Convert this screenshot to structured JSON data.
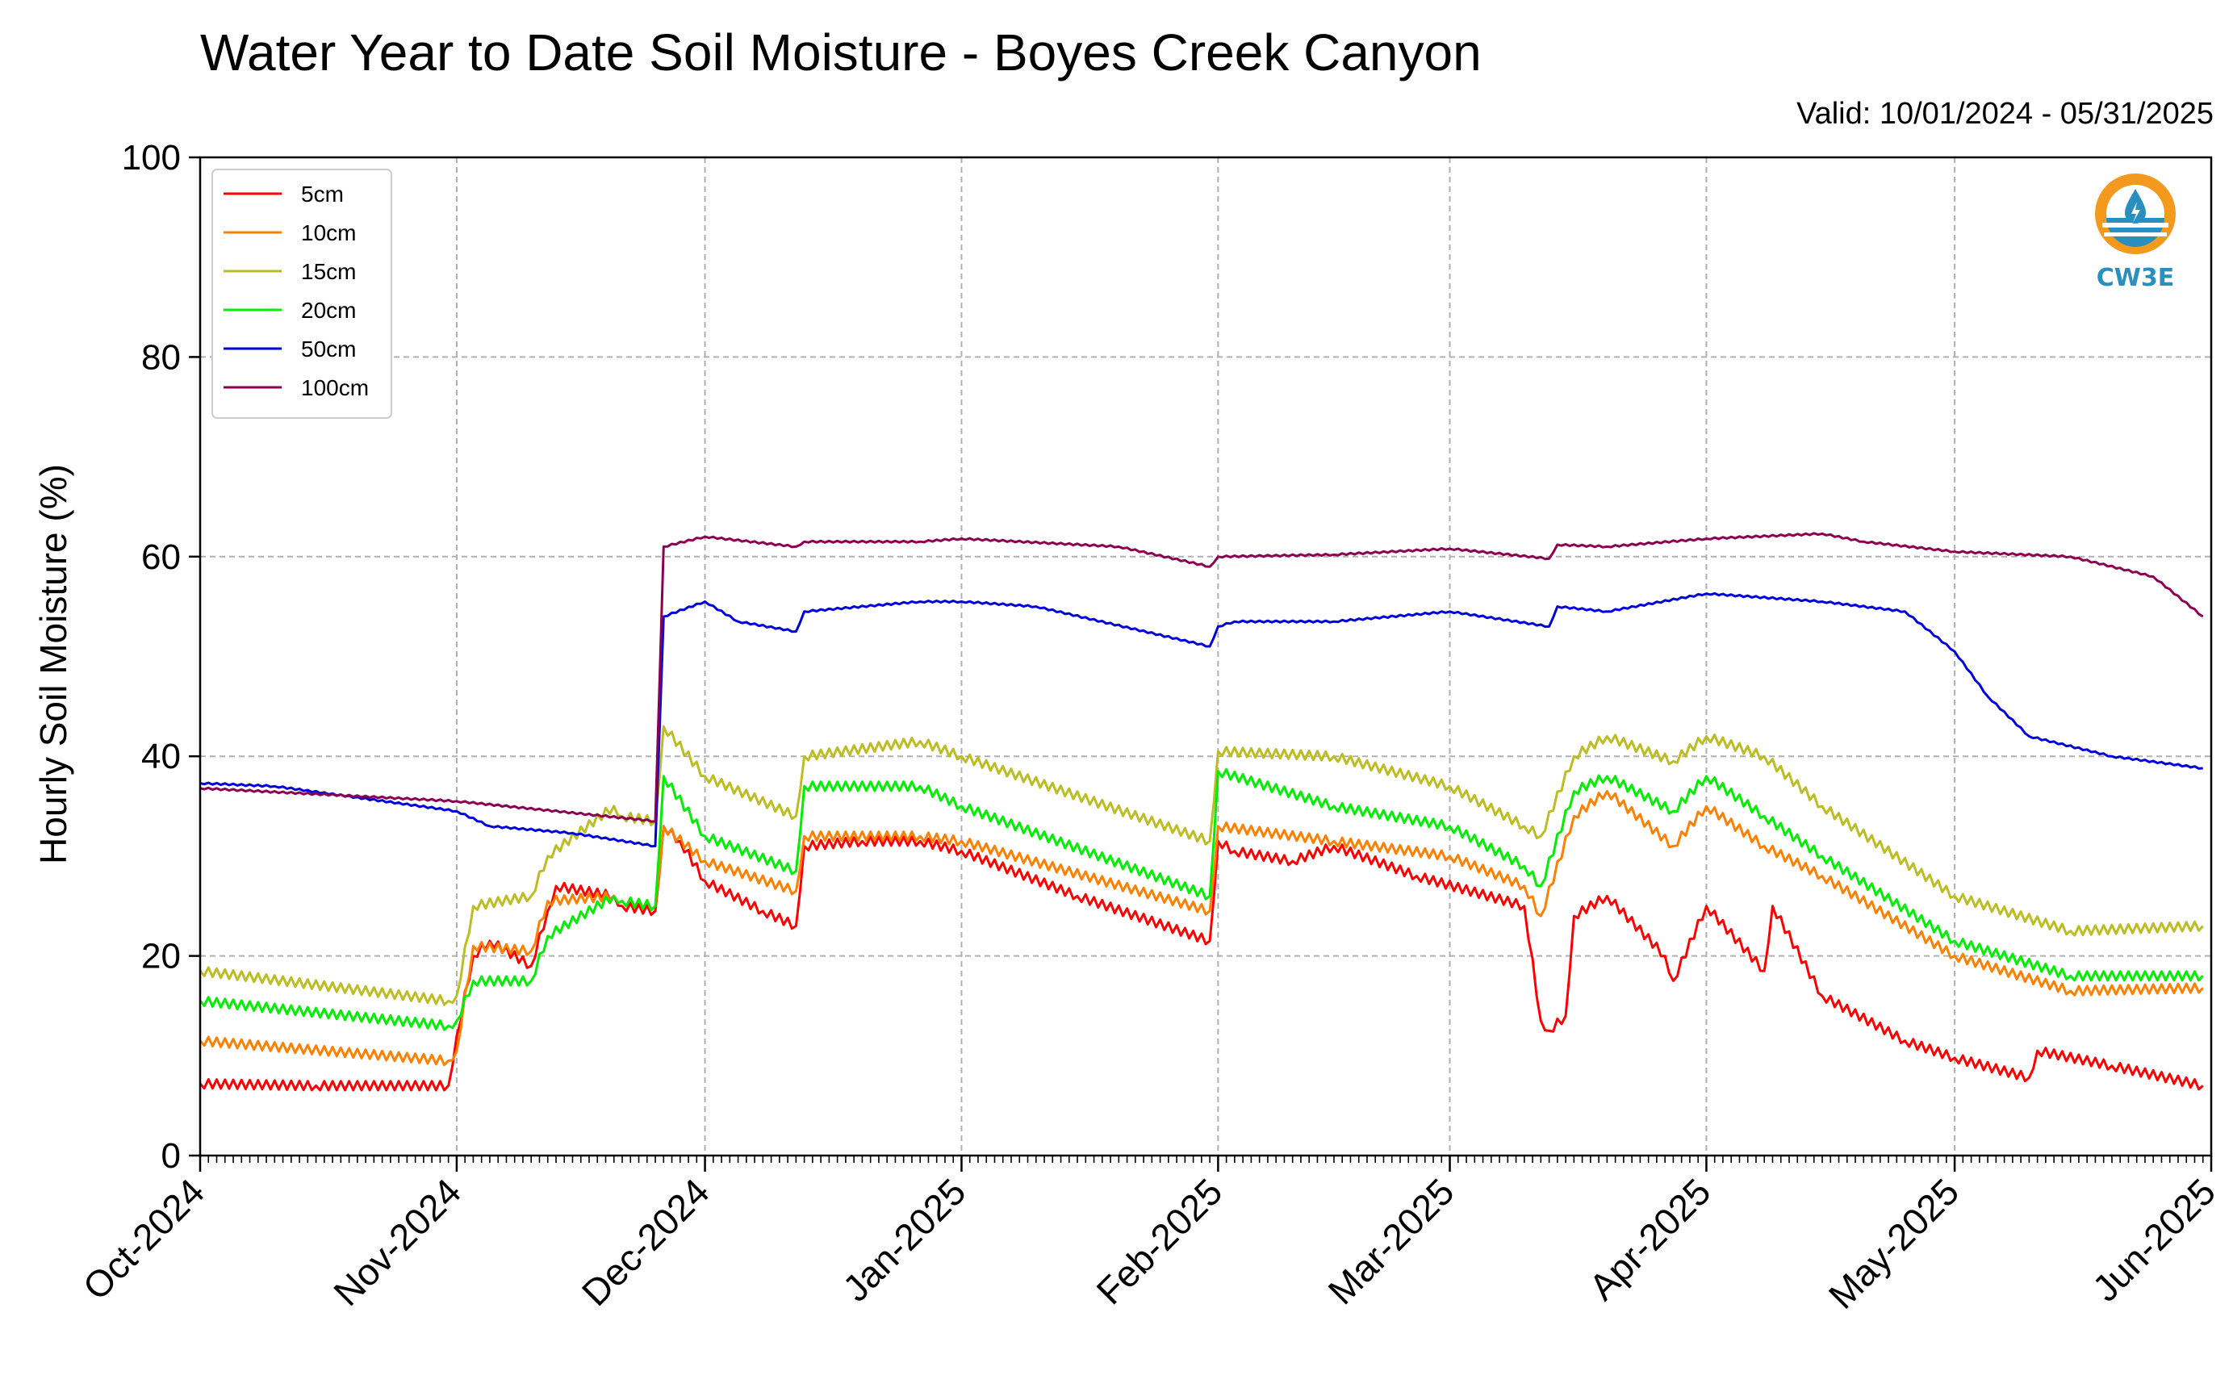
{
  "chart_data": {
    "type": "line",
    "title": "Water Year to Date Soil Moisture - Boyes Creek Canyon",
    "subtitle": "Valid: 10/01/2024 - 05/31/2025",
    "xlabel": "",
    "ylabel": "Hourly Soil Moisture (%)",
    "ylim": [
      0,
      100
    ],
    "xlim": [
      "2024-10-01",
      "2025-06-01"
    ],
    "yticks": [
      0,
      20,
      40,
      60,
      80,
      100
    ],
    "xticks": [
      {
        "date": "2024-10-01",
        "label": "Oct-2024"
      },
      {
        "date": "2024-11-01",
        "label": "Nov-2024"
      },
      {
        "date": "2024-12-01",
        "label": "Dec-2024"
      },
      {
        "date": "2025-01-01",
        "label": "Jan-2025"
      },
      {
        "date": "2025-02-01",
        "label": "Feb-2025"
      },
      {
        "date": "2025-03-01",
        "label": "Mar-2025"
      },
      {
        "date": "2025-04-01",
        "label": "Apr-2025"
      },
      {
        "date": "2025-05-01",
        "label": "May-2025"
      },
      {
        "date": "2025-06-01",
        "label": "Jun-2025"
      }
    ],
    "grid": true,
    "legend_position": "top-left",
    "series": [
      {
        "name": "5cm",
        "color": "#ff0000",
        "x": [
          "2024-10-01",
          "2024-10-15",
          "2024-10-31",
          "2024-11-01",
          "2024-11-03",
          "2024-11-05",
          "2024-11-10",
          "2024-11-12",
          "2024-11-13",
          "2024-11-20",
          "2024-11-21",
          "2024-11-25",
          "2024-11-26",
          "2024-11-28",
          "2024-12-01",
          "2024-12-08",
          "2024-12-12",
          "2024-12-13",
          "2024-12-20",
          "2024-12-27",
          "2025-01-01",
          "2025-01-15",
          "2025-01-31",
          "2025-02-01",
          "2025-02-03",
          "2025-02-10",
          "2025-02-15",
          "2025-02-25",
          "2025-03-10",
          "2025-03-12",
          "2025-03-13",
          "2025-03-15",
          "2025-03-16",
          "2025-03-20",
          "2025-03-27",
          "2025-03-28",
          "2025-04-01",
          "2025-04-08",
          "2025-04-09",
          "2025-04-15",
          "2025-04-25",
          "2025-05-01",
          "2025-05-10",
          "2025-05-11",
          "2025-05-20",
          "2025-05-31"
        ],
        "y": [
          7.2,
          7.0,
          7.0,
          12.0,
          20.0,
          21.5,
          19.0,
          24.5,
          27.0,
          26.0,
          25.0,
          24.5,
          33.0,
          31.5,
          27.5,
          24.5,
          23.0,
          31.0,
          31.5,
          31.5,
          30.5,
          26.0,
          21.5,
          31.5,
          30.5,
          29.5,
          31.0,
          28.0,
          25.0,
          13.5,
          12.5,
          14.0,
          24.0,
          26.0,
          20.0,
          17.5,
          25.0,
          18.5,
          25.0,
          16.0,
          11.5,
          9.8,
          7.8,
          10.5,
          9.0,
          7.0
        ]
      },
      {
        "name": "10cm",
        "color": "#ff8000",
        "x": [
          "2024-10-01",
          "2024-10-31",
          "2024-11-01",
          "2024-11-03",
          "2024-11-10",
          "2024-11-12",
          "2024-11-20",
          "2024-11-21",
          "2024-11-25",
          "2024-11-26",
          "2024-12-01",
          "2024-12-12",
          "2024-12-13",
          "2024-12-27",
          "2025-01-01",
          "2025-01-31",
          "2025-02-01",
          "2025-02-15",
          "2025-03-01",
          "2025-03-10",
          "2025-03-12",
          "2025-03-16",
          "2025-03-20",
          "2025-03-28",
          "2025-04-01",
          "2025-04-08",
          "2025-04-15",
          "2025-05-01",
          "2025-05-15",
          "2025-05-31"
        ],
        "y": [
          11.5,
          9.5,
          10.5,
          21.0,
          20.5,
          25.5,
          26.0,
          25.5,
          25.0,
          33.0,
          29.5,
          26.5,
          32.0,
          32.0,
          31.5,
          24.5,
          33.0,
          31.5,
          30.0,
          27.0,
          24.0,
          34.0,
          36.5,
          31.0,
          35.0,
          31.0,
          28.0,
          20.0,
          16.5,
          16.8
        ]
      },
      {
        "name": "15cm",
        "color": "#bcbd22",
        "x": [
          "2024-10-01",
          "2024-10-31",
          "2024-11-01",
          "2024-11-03",
          "2024-11-10",
          "2024-11-12",
          "2024-11-20",
          "2024-11-21",
          "2024-11-25",
          "2024-11-26",
          "2024-12-01",
          "2024-12-12",
          "2024-12-13",
          "2024-12-27",
          "2025-01-01",
          "2025-01-31",
          "2025-02-01",
          "2025-02-15",
          "2025-03-01",
          "2025-03-10",
          "2025-03-12",
          "2025-03-16",
          "2025-03-20",
          "2025-03-28",
          "2025-04-01",
          "2025-04-08",
          "2025-04-15",
          "2025-05-01",
          "2025-05-15",
          "2025-05-31"
        ],
        "y": [
          18.5,
          15.5,
          16.0,
          25.0,
          26.0,
          30.0,
          35.0,
          34.0,
          33.5,
          43.0,
          38.0,
          34.0,
          40.0,
          41.5,
          40.0,
          31.5,
          40.5,
          40.0,
          37.0,
          33.0,
          32.0,
          40.0,
          42.0,
          39.5,
          42.0,
          40.0,
          35.0,
          26.0,
          22.5,
          23.0
        ]
      },
      {
        "name": "20cm",
        "color": "#00ee00",
        "x": [
          "2024-10-01",
          "2024-10-31",
          "2024-11-01",
          "2024-11-03",
          "2024-11-10",
          "2024-11-12",
          "2024-11-20",
          "2024-11-21",
          "2024-11-25",
          "2024-11-26",
          "2024-12-01",
          "2024-12-12",
          "2024-12-13",
          "2024-12-27",
          "2025-01-01",
          "2025-01-31",
          "2025-02-01",
          "2025-02-15",
          "2025-03-01",
          "2025-03-10",
          "2025-03-12",
          "2025-03-16",
          "2025-03-20",
          "2025-03-28",
          "2025-04-01",
          "2025-04-08",
          "2025-04-15",
          "2025-05-01",
          "2025-05-15",
          "2025-05-31"
        ],
        "y": [
          15.5,
          13.0,
          13.5,
          17.5,
          17.5,
          22.0,
          26.0,
          25.5,
          25.0,
          38.0,
          32.0,
          28.5,
          37.0,
          37.0,
          35.0,
          26.0,
          38.5,
          35.0,
          33.0,
          29.0,
          27.0,
          36.5,
          38.0,
          34.5,
          38.0,
          34.0,
          30.0,
          21.5,
          18.0,
          18.0
        ]
      },
      {
        "name": "50cm",
        "color": "#0000dd",
        "x": [
          "2024-10-01",
          "2024-10-10",
          "2024-11-01",
          "2024-11-05",
          "2024-11-15",
          "2024-11-25",
          "2024-11-26",
          "2024-12-01",
          "2024-12-05",
          "2024-12-12",
          "2024-12-13",
          "2024-12-27",
          "2025-01-01",
          "2025-01-10",
          "2025-01-31",
          "2025-02-01",
          "2025-02-03",
          "2025-02-15",
          "2025-03-01",
          "2025-03-13",
          "2025-03-14",
          "2025-03-20",
          "2025-04-01",
          "2025-04-15",
          "2025-04-25",
          "2025-05-01",
          "2025-05-05",
          "2025-05-10",
          "2025-05-20",
          "2025-05-31"
        ],
        "y": [
          37.3,
          37.0,
          34.5,
          33.0,
          32.3,
          31.0,
          54.0,
          55.5,
          53.5,
          52.5,
          54.5,
          55.5,
          55.5,
          55.0,
          51.0,
          53.0,
          53.5,
          53.5,
          54.5,
          53.0,
          55.0,
          54.5,
          56.3,
          55.5,
          54.5,
          50.5,
          46.0,
          42.0,
          40.0,
          38.8
        ]
      },
      {
        "name": "100cm",
        "color": "#8b0050",
        "x": [
          "2024-10-01",
          "2024-11-01",
          "2024-11-25",
          "2024-11-26",
          "2024-12-01",
          "2024-12-12",
          "2024-12-13",
          "2024-12-27",
          "2025-01-01",
          "2025-01-20",
          "2025-01-31",
          "2025-02-01",
          "2025-02-15",
          "2025-03-01",
          "2025-03-13",
          "2025-03-14",
          "2025-03-20",
          "2025-04-01",
          "2025-04-15",
          "2025-04-20",
          "2025-05-01",
          "2025-05-15",
          "2025-05-25",
          "2025-05-31"
        ],
        "y": [
          36.8,
          35.5,
          33.5,
          61.0,
          62.0,
          61.0,
          61.5,
          61.5,
          61.8,
          61.0,
          59.0,
          60.0,
          60.2,
          60.8,
          59.8,
          61.2,
          61.0,
          61.8,
          62.3,
          61.5,
          60.5,
          60.0,
          58.0,
          54.0
        ]
      }
    ]
  },
  "logo": {
    "text": "CW3E",
    "icon": "water-drop-icon",
    "color": "#2a8fbf",
    "ring_color": "#f39a1e"
  }
}
